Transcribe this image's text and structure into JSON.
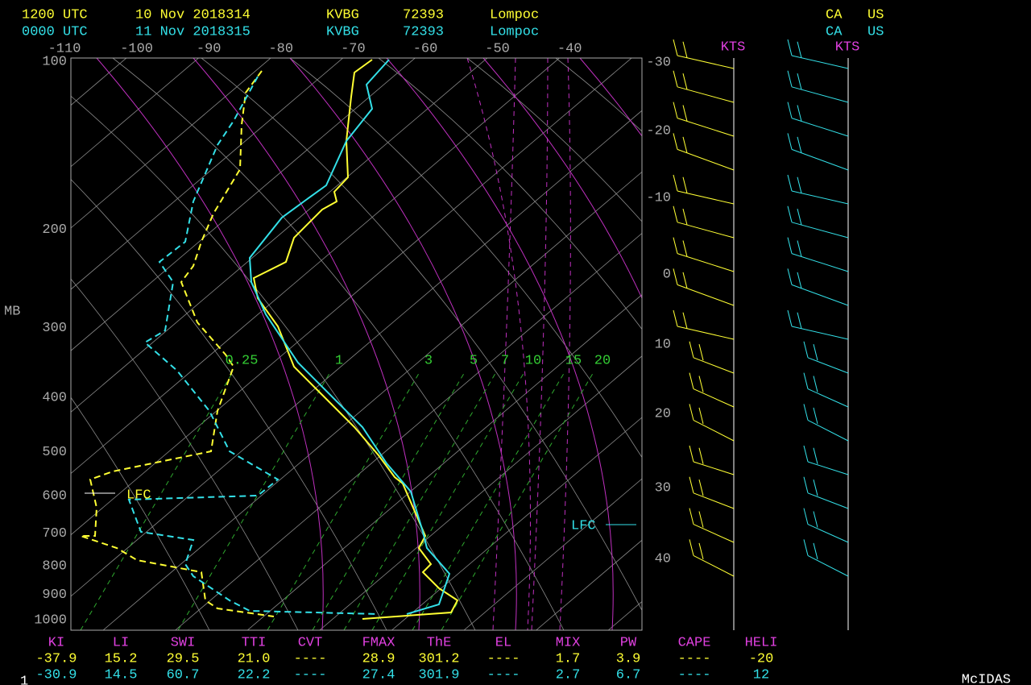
{
  "header": {
    "rows": [
      [
        "1200 UTC",
        "10 Nov 2018314",
        "KVBG",
        "72393",
        "Lompoc",
        "CA",
        "US"
      ],
      [
        "0000 UTC",
        "11 Nov 2018315",
        "KVBG",
        "72393",
        "Lompoc",
        "CA",
        "US"
      ]
    ]
  },
  "temperature_axis": [
    "-110",
    "-100",
    "-90",
    "-80",
    "-70",
    "-60",
    "-50",
    "-40"
  ],
  "pressure_axis": {
    "title": "MB",
    "labels": [
      "100",
      "200",
      "300",
      "400",
      "500",
      "600",
      "700",
      "800",
      "900",
      "1000"
    ]
  },
  "height_axis": [
    "-30",
    "-20",
    "-10",
    "0",
    "10",
    "20",
    "30",
    "40"
  ],
  "mixing_ratio_labels": [
    "0.25",
    "1",
    "3",
    "5",
    "7",
    "10",
    "15",
    "20"
  ],
  "lfc_labels": [
    "LFC",
    "LFC"
  ],
  "wind_units": [
    "KTS",
    "KTS"
  ],
  "indices": {
    "headers": [
      "KI",
      "LI",
      "SWI",
      "TTI",
      "CVT",
      "FMAX",
      "ThE",
      "EL",
      "MIX",
      "PW",
      "CAPE",
      "HELI"
    ],
    "rows": [
      [
        "-37.9",
        "15.2",
        "29.5",
        "21.0",
        "----",
        "28.9",
        "301.2",
        "----",
        "1.7",
        "3.9",
        "----",
        "-20"
      ],
      [
        "-30.9",
        "14.5",
        "60.7",
        "22.2",
        "----",
        "27.4",
        "301.9",
        "----",
        "2.7",
        "6.7",
        "----",
        "12"
      ]
    ]
  },
  "footer": {
    "left": "1",
    "right": "McIDAS"
  }
}
